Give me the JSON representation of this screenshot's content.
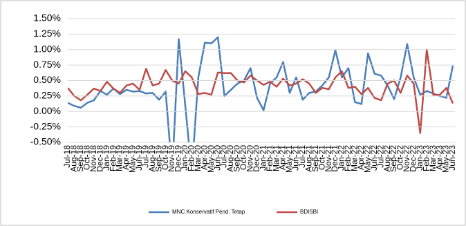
{
  "chart_data": {
    "type": "line",
    "categories": [
      "Jul-18",
      "Aug-18",
      "Sep-18",
      "Oct-18",
      "Nov-18",
      "Dec-18",
      "Jan-19",
      "Feb-19",
      "Mar-19",
      "Apr-19",
      "May-19",
      "Jun-19",
      "Jul-19",
      "Aug-19",
      "Sep-19",
      "Oct-19",
      "Nov-19",
      "Dec-19",
      "Jan-20",
      "Feb-20",
      "Mar-20",
      "Apr-20",
      "May-20",
      "Jun-20",
      "Jul-20",
      "Aug-20",
      "Sep-20",
      "Oct-20",
      "Nov-20",
      "Dec-20",
      "Jan-21",
      "Feb-21",
      "Mar-21",
      "Apr-21",
      "May-21",
      "Jun-21",
      "Jul-21",
      "Aug-21",
      "Sep-21",
      "Oct-21",
      "Nov-21",
      "Dec-21",
      "Jan-22",
      "Feb-22",
      "Mar-22",
      "Apr-22",
      "May-22",
      "Jun-22",
      "Jul-22",
      "Aug-22",
      "Sep-22",
      "Oct-22",
      "Nov-22",
      "Dec-22",
      "Jan-23",
      "Feb-23",
      "Mar-23",
      "Apr-23",
      "May-23",
      "Jun-23"
    ],
    "series": [
      {
        "name": "MNC Konservatif Pend. Tetap",
        "color": "#4a7ebb",
        "values": [
          0.14,
          0.09,
          0.06,
          0.14,
          0.18,
          0.33,
          0.27,
          0.37,
          0.28,
          0.35,
          0.32,
          0.33,
          0.29,
          0.3,
          0.19,
          0.32,
          -1.0,
          1.17,
          0.1,
          -1.0,
          0.55,
          1.11,
          1.1,
          1.2,
          0.25,
          0.35,
          0.45,
          0.5,
          0.7,
          0.22,
          0.02,
          0.45,
          0.55,
          0.8,
          0.3,
          0.55,
          0.19,
          0.3,
          0.32,
          0.42,
          0.55,
          0.99,
          0.55,
          0.7,
          0.15,
          0.12,
          0.94,
          0.61,
          0.58,
          0.42,
          0.2,
          0.55,
          1.09,
          0.55,
          0.27,
          0.33,
          0.29,
          0.25,
          0.22,
          0.74
        ]
      },
      {
        "name": "BDISBI",
        "color": "#be4b48",
        "values": [
          0.38,
          0.25,
          0.18,
          0.27,
          0.37,
          0.33,
          0.48,
          0.37,
          0.3,
          0.42,
          0.45,
          0.35,
          0.69,
          0.42,
          0.45,
          0.67,
          0.5,
          0.45,
          0.65,
          0.55,
          0.28,
          0.3,
          0.27,
          0.63,
          0.62,
          0.62,
          0.5,
          0.47,
          0.58,
          0.5,
          0.43,
          0.48,
          0.4,
          0.53,
          0.42,
          0.45,
          0.52,
          0.45,
          0.3,
          0.38,
          0.36,
          0.55,
          0.65,
          0.38,
          0.4,
          0.28,
          0.38,
          0.22,
          0.18,
          0.45,
          0.5,
          0.3,
          0.58,
          0.45,
          -0.35,
          1.0,
          0.27,
          0.27,
          0.38,
          0.13
        ]
      }
    ],
    "ylim": [
      -0.5,
      1.5
    ],
    "yticks": [
      {
        "value": -0.5,
        "label": "-0.50%"
      },
      {
        "value": -0.25,
        "label": "-0.25%"
      },
      {
        "value": 0,
        "label": "0.00%"
      },
      {
        "value": 0.25,
        "label": "0.25%"
      },
      {
        "value": 0.5,
        "label": "0.50%"
      },
      {
        "value": 0.75,
        "label": "0.75%"
      },
      {
        "value": 1.0,
        "label": "1.00%"
      },
      {
        "value": 1.25,
        "label": "1.25%"
      },
      {
        "value": 1.5,
        "label": "1.50%"
      }
    ],
    "grid": true,
    "legend": "bottom"
  }
}
